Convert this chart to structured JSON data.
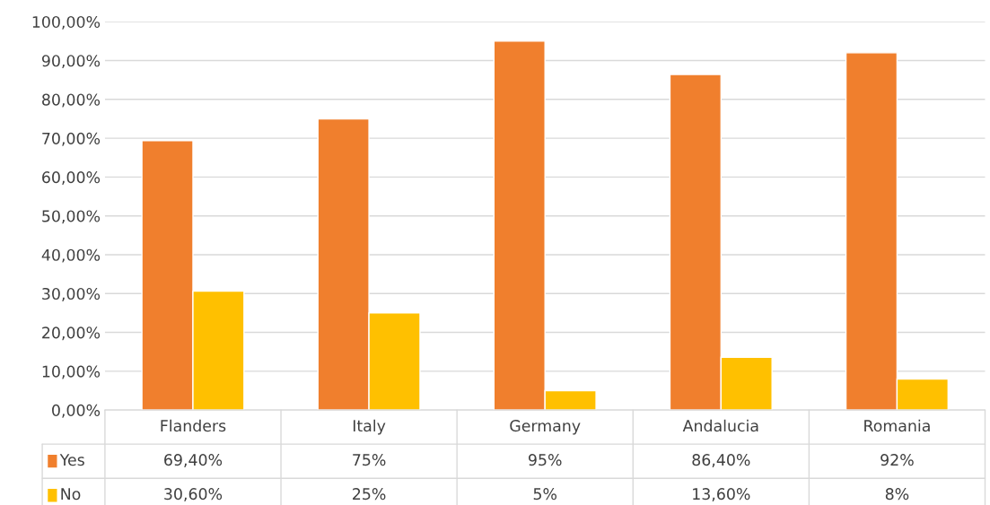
{
  "chart_data": {
    "type": "bar",
    "categories": [
      "Flanders",
      "Italy",
      "Germany",
      "Andalucia",
      "Romania"
    ],
    "series": [
      {
        "name": "Yes",
        "color": "#f07f2d",
        "values": [
          69.4,
          75,
          95,
          86.4,
          92
        ],
        "value_labels": [
          "69,40%",
          "75%",
          "95%",
          "86,40%",
          "92%"
        ]
      },
      {
        "name": "No",
        "color": "#ffc000",
        "values": [
          30.6,
          25,
          5,
          13.6,
          8
        ],
        "value_labels": [
          "30,60%",
          "25%",
          "5%",
          "13,60%",
          "8%"
        ]
      }
    ],
    "ylim": [
      0,
      100
    ],
    "yticks": [
      {
        "value": 0,
        "label": "0,00%"
      },
      {
        "value": 10,
        "label": "10,00%"
      },
      {
        "value": 20,
        "label": "20,00%"
      },
      {
        "value": 30,
        "label": "30,00%"
      },
      {
        "value": 40,
        "label": "40,00%"
      },
      {
        "value": 50,
        "label": "50,00%"
      },
      {
        "value": 60,
        "label": "60,00%"
      },
      {
        "value": 70,
        "label": "70,00%"
      },
      {
        "value": 80,
        "label": "80,00%"
      },
      {
        "value": 90,
        "label": "90,00%"
      },
      {
        "value": 100,
        "label": "100,00%"
      }
    ],
    "grid": "y",
    "legend": "bottom left"
  }
}
